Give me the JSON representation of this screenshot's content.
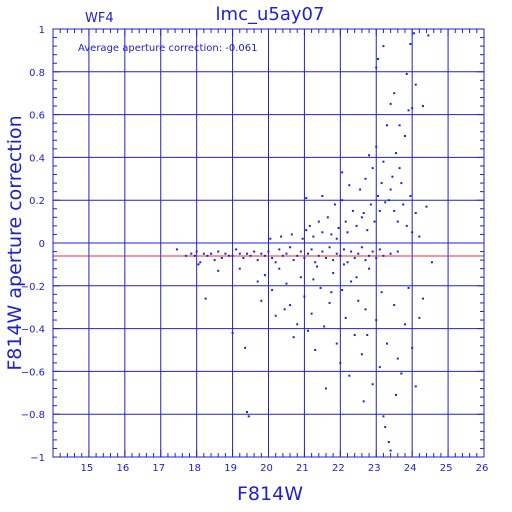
{
  "chart_data": {
    "type": "scatter",
    "title": "lmc_u5ay07",
    "subtitle": "WF4",
    "xlabel": "F814W",
    "ylabel": "F814W aperture correction",
    "annotation": "Average aperture correction: -0.061",
    "xlim": [
      14,
      26
    ],
    "ylim": [
      -1,
      1
    ],
    "x_ticks": [
      15,
      16,
      17,
      18,
      19,
      20,
      21,
      22,
      23,
      24,
      25,
      26
    ],
    "y_ticks": [
      -1,
      -0.8,
      -0.6,
      -0.4,
      -0.2,
      0,
      0.2,
      0.4,
      0.6,
      0.8,
      1
    ],
    "x_tick_labels": [
      "15",
      "16",
      "17",
      "18",
      "19",
      "20",
      "21",
      "22",
      "23",
      "24",
      "25",
      "26"
    ],
    "y_tick_labels": [
      "−1",
      "−0.8",
      "−0.6",
      "−0.4",
      "−0.2",
      "0",
      "0.2",
      "0.4",
      "0.6",
      "0.8",
      "1"
    ],
    "grid": true,
    "reference_lines": [
      {
        "y": 0,
        "color": "#2020d0"
      },
      {
        "y": -0.061,
        "color": "#e03030"
      }
    ],
    "colors": {
      "axes": "#2020d0",
      "points": "#2020d0",
      "average_line": "#e03030"
    },
    "series": [
      {
        "points": [
          [
            17.45,
            -0.03
          ],
          [
            17.7,
            -0.06
          ],
          [
            17.85,
            -0.05
          ],
          [
            17.95,
            -0.06
          ],
          [
            18.0,
            -0.04
          ],
          [
            18.1,
            -0.09
          ],
          [
            18.2,
            -0.05
          ],
          [
            18.3,
            -0.06
          ],
          [
            18.4,
            -0.05
          ],
          [
            18.5,
            -0.08
          ],
          [
            18.6,
            -0.04
          ],
          [
            18.7,
            -0.07
          ],
          [
            18.8,
            -0.05
          ],
          [
            18.9,
            -0.06
          ],
          [
            19.0,
            -0.06
          ],
          [
            19.1,
            -0.03
          ],
          [
            19.2,
            -0.05
          ],
          [
            19.3,
            -0.07
          ],
          [
            19.4,
            -0.05
          ],
          [
            19.5,
            -0.06
          ],
          [
            19.6,
            -0.04
          ],
          [
            19.7,
            -0.08
          ],
          [
            19.8,
            -0.05
          ],
          [
            19.9,
            -0.06
          ],
          [
            20.0,
            -0.04
          ],
          [
            20.1,
            -0.07
          ],
          [
            20.2,
            -0.09
          ],
          [
            20.3,
            -0.03
          ],
          [
            20.4,
            -0.06
          ],
          [
            20.5,
            -0.05
          ],
          [
            20.6,
            -0.02
          ],
          [
            20.7,
            -0.08
          ],
          [
            20.8,
            -0.06
          ],
          [
            20.9,
            -0.04
          ],
          [
            21.0,
            -0.07
          ],
          [
            21.1,
            -0.05
          ],
          [
            21.2,
            -0.03
          ],
          [
            21.3,
            -0.09
          ],
          [
            21.4,
            -0.06
          ],
          [
            21.5,
            -0.04
          ],
          [
            21.6,
            -0.07
          ],
          [
            21.7,
            -0.02
          ],
          [
            21.8,
            -0.08
          ],
          [
            21.9,
            -0.05
          ],
          [
            22.0,
            -0.06
          ],
          [
            22.1,
            -0.03
          ],
          [
            22.2,
            -0.09
          ],
          [
            22.3,
            -0.04
          ],
          [
            22.4,
            -0.07
          ],
          [
            22.5,
            -0.05
          ],
          [
            22.6,
            -0.02
          ],
          [
            22.7,
            -0.08
          ],
          [
            22.8,
            -0.06
          ],
          [
            22.9,
            -0.04
          ],
          [
            23.0,
            -0.07
          ],
          [
            23.1,
            -0.03
          ],
          [
            23.2,
            -0.06
          ],
          [
            23.4,
            -0.05
          ],
          [
            23.6,
            -0.04
          ],
          [
            18.25,
            -0.26
          ],
          [
            18.05,
            -0.1
          ],
          [
            18.6,
            -0.13
          ],
          [
            19.0,
            -0.42
          ],
          [
            19.2,
            -0.12
          ],
          [
            19.35,
            -0.49
          ],
          [
            19.45,
            -0.81
          ],
          [
            19.4,
            -0.79
          ],
          [
            19.7,
            -0.18
          ],
          [
            19.8,
            -0.27
          ],
          [
            19.9,
            -0.15
          ],
          [
            20.1,
            -0.22
          ],
          [
            20.2,
            -0.34
          ],
          [
            20.3,
            -0.12
          ],
          [
            20.5,
            -0.19
          ],
          [
            20.6,
            -0.29
          ],
          [
            20.7,
            -0.44
          ],
          [
            20.8,
            -0.38
          ],
          [
            20.9,
            -0.16
          ],
          [
            21.0,
            -0.25
          ],
          [
            21.1,
            -0.41
          ],
          [
            21.2,
            -0.33
          ],
          [
            21.3,
            -0.5
          ],
          [
            21.35,
            -0.11
          ],
          [
            21.45,
            -0.21
          ],
          [
            21.55,
            -0.39
          ],
          [
            21.6,
            -0.68
          ],
          [
            21.7,
            -0.28
          ],
          [
            21.8,
            -0.14
          ],
          [
            21.9,
            -0.47
          ],
          [
            22.0,
            -0.56
          ],
          [
            22.05,
            -0.22
          ],
          [
            22.15,
            -0.35
          ],
          [
            22.25,
            -0.62
          ],
          [
            22.3,
            -0.18
          ],
          [
            22.4,
            -0.43
          ],
          [
            22.5,
            -0.27
          ],
          [
            22.6,
            -0.52
          ],
          [
            22.65,
            -0.74
          ],
          [
            22.7,
            -0.31
          ],
          [
            22.8,
            -0.12
          ],
          [
            22.9,
            -0.66
          ],
          [
            23.0,
            -0.36
          ],
          [
            23.1,
            -0.58
          ],
          [
            23.15,
            -0.23
          ],
          [
            23.2,
            -0.81
          ],
          [
            23.3,
            -0.47
          ],
          [
            23.35,
            -0.93
          ],
          [
            23.4,
            -0.97
          ],
          [
            23.5,
            -0.29
          ],
          [
            23.55,
            -0.71
          ],
          [
            23.6,
            -0.54
          ],
          [
            23.7,
            -0.61
          ],
          [
            23.8,
            -0.38
          ],
          [
            23.9,
            -0.21
          ],
          [
            24.0,
            -0.49
          ],
          [
            24.1,
            -0.67
          ],
          [
            24.2,
            -0.35
          ],
          [
            24.3,
            -0.26
          ],
          [
            23.25,
            -0.86
          ],
          [
            22.75,
            -0.43
          ],
          [
            22.1,
            -0.1
          ],
          [
            21.25,
            -0.17
          ],
          [
            20.45,
            -0.31
          ],
          [
            21.75,
            -0.23
          ],
          [
            22.45,
            -0.16
          ],
          [
            20.05,
            0.02
          ],
          [
            20.35,
            0.03
          ],
          [
            20.65,
            0.04
          ],
          [
            20.95,
            0.02
          ],
          [
            21.05,
            0.06
          ],
          [
            21.15,
            0.08
          ],
          [
            21.25,
            0.03
          ],
          [
            21.4,
            0.1
          ],
          [
            21.5,
            0.05
          ],
          [
            21.65,
            0.12
          ],
          [
            21.75,
            0.04
          ],
          [
            21.85,
            0.18
          ],
          [
            21.95,
            0.07
          ],
          [
            22.05,
            0.2
          ],
          [
            22.15,
            0.1
          ],
          [
            22.2,
            0.05
          ],
          [
            22.35,
            0.15
          ],
          [
            22.45,
            0.08
          ],
          [
            22.55,
            0.25
          ],
          [
            22.6,
            0.12
          ],
          [
            22.7,
            0.3
          ],
          [
            22.75,
            0.06
          ],
          [
            22.85,
            0.18
          ],
          [
            22.9,
            0.35
          ],
          [
            22.95,
            0.1
          ],
          [
            23.0,
            0.45
          ],
          [
            23.05,
            0.22
          ],
          [
            23.1,
            0.15
          ],
          [
            23.15,
            0.28
          ],
          [
            23.2,
            0.38
          ],
          [
            23.25,
            0.19
          ],
          [
            23.3,
            0.55
          ],
          [
            23.35,
            0.2
          ],
          [
            23.4,
            0.25
          ],
          [
            23.45,
            0.31
          ],
          [
            23.5,
            0.15
          ],
          [
            23.55,
            0.42
          ],
          [
            23.6,
            0.1
          ],
          [
            23.65,
            0.35
          ],
          [
            23.7,
            0.28
          ],
          [
            23.75,
            0.18
          ],
          [
            23.8,
            0.5
          ],
          [
            23.85,
            0.08
          ],
          [
            23.9,
            0.62
          ],
          [
            23.95,
            0.22
          ],
          [
            24.0,
            0.05
          ],
          [
            24.1,
            0.14
          ],
          [
            24.2,
            0.03
          ],
          [
            24.4,
            0.17
          ],
          [
            24.55,
            -0.09
          ],
          [
            23.0,
            0.82
          ],
          [
            23.05,
            0.86
          ],
          [
            23.2,
            0.92
          ],
          [
            23.5,
            0.7
          ],
          [
            24.0,
            0.63
          ],
          [
            24.05,
            0.98
          ],
          [
            24.3,
            0.64
          ],
          [
            24.45,
            0.97
          ],
          [
            23.85,
            0.79
          ],
          [
            23.65,
            0.55
          ],
          [
            22.25,
            0.27
          ],
          [
            21.05,
            0.21
          ],
          [
            21.5,
            0.22
          ],
          [
            22.8,
            0.41
          ],
          [
            22.05,
            0.33
          ],
          [
            23.4,
            0.65
          ],
          [
            24.1,
            0.74
          ],
          [
            23.95,
            0.93
          ],
          [
            22.65,
            0.14
          ],
          [
            21.9,
            0.02
          ]
        ]
      }
    ]
  }
}
